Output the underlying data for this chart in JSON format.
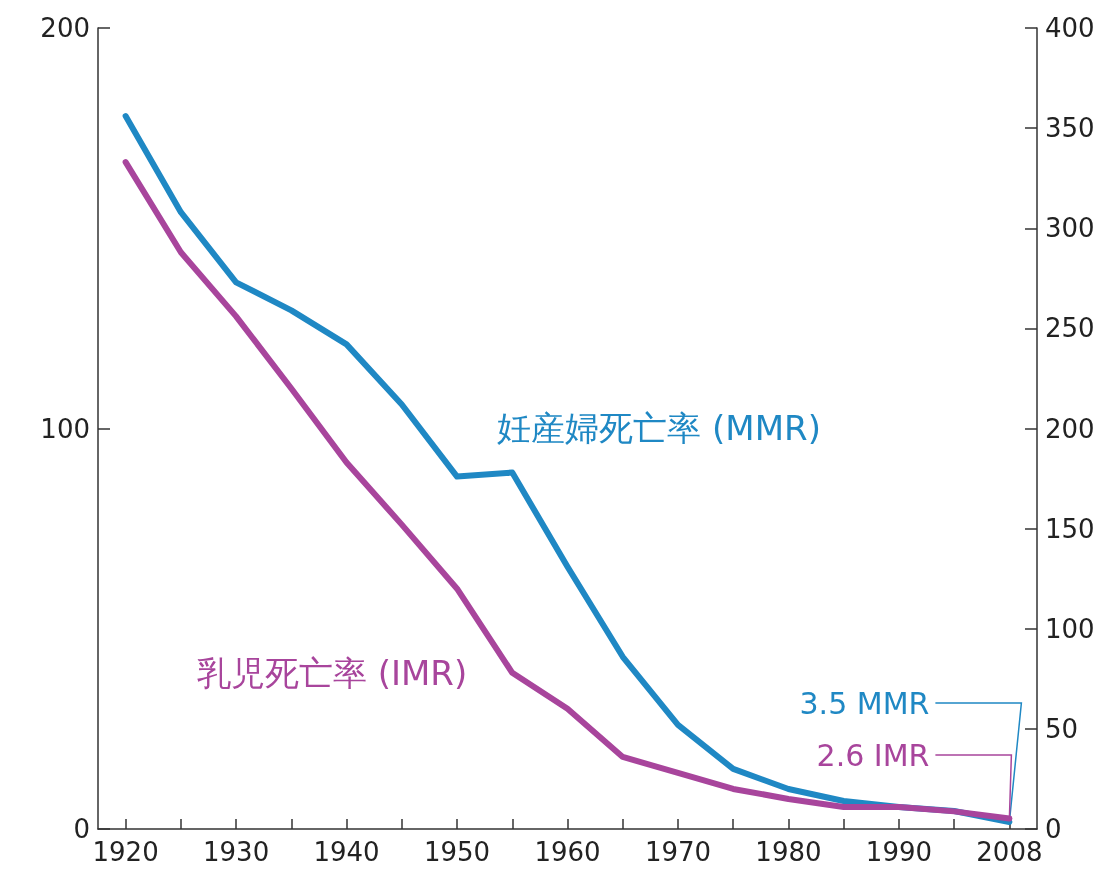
{
  "chart_data": {
    "type": "line",
    "categories": [
      "1920",
      null,
      "1930",
      null,
      "1940",
      null,
      "1950",
      null,
      "1960",
      null,
      "1970",
      null,
      "1980",
      null,
      "1990",
      null,
      "2008"
    ],
    "series": [
      {
        "name": "妊産婦死亡率 (MMR)",
        "color": "#1f88c4",
        "axis": "y2",
        "values": [
          356,
          308,
          273,
          259,
          242,
          212,
          176,
          178,
          131,
          86,
          52,
          30,
          20,
          14,
          11,
          9,
          3.5
        ]
      },
      {
        "name": "乳児死亡率 (IMR)",
        "color": "#a8459c",
        "values": [
          166.5,
          144,
          128,
          110,
          91.5,
          76,
          60,
          39,
          30,
          18,
          14,
          10,
          7.5,
          5.5,
          5.5,
          4.4,
          2.6
        ]
      }
    ],
    "ylim": [
      0,
      200
    ],
    "yticks": [
      0,
      100,
      200
    ],
    "y2lim": [
      0,
      400
    ],
    "y2ticks": [
      0,
      50,
      100,
      150,
      200,
      250,
      300,
      350,
      400
    ],
    "annotations": [
      {
        "text": "3.5 MMR",
        "x": "2008",
        "y": 3.5
      },
      {
        "text": "2.6 IMR",
        "x": "2008",
        "y": 2.6
      }
    ],
    "grid": false,
    "legend": false,
    "marker": "none",
    "line_style": "solid"
  }
}
